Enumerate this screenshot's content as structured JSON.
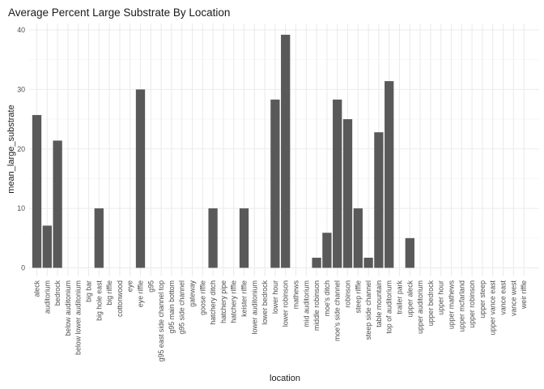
{
  "chart_data": {
    "type": "bar",
    "title": "Average Percent Large Substrate By Location",
    "xlabel": "location",
    "ylabel": "mean_large_substrate",
    "ylim": [
      0,
      40
    ],
    "yticks": [
      0,
      10,
      20,
      30,
      40
    ],
    "grid": true,
    "bar_color": "#595959",
    "categories": [
      "aleck",
      "auditorium",
      "bedrock",
      "below auditonium",
      "below lower auditonium",
      "big bar",
      "big hole east",
      "big riffle",
      "cottonwood",
      "eye",
      "eye riffle",
      "g95",
      "g95 east side channel top",
      "g95 main bottom",
      "g95 side channel",
      "gateway",
      "goose riffle",
      "hatchery ditch",
      "hatchery pipe",
      "hatchery riffle",
      "keister riffle",
      "lower auditonium",
      "lower bedrock",
      "lower hour",
      "lower robinson",
      "mathews",
      "mid auditorium",
      "middle robinson",
      "moe's ditch",
      "moe's side channel",
      "robinson",
      "steep riffle",
      "steep side channel",
      "table mountain",
      "top of auditorium",
      "trailer park",
      "upper aleck",
      "upper auditorium",
      "upper bedrock",
      "upper hour",
      "upper mathews",
      "upper mcfarland",
      "upper robinson",
      "upper steep",
      "upper vance east",
      "vance east",
      "vance west",
      "weir riffle"
    ],
    "values": [
      25.7,
      7.1,
      21.4,
      0,
      0,
      0,
      10,
      0,
      0,
      0,
      30,
      0,
      0,
      0,
      0,
      0,
      0,
      10,
      0,
      0,
      10,
      0,
      0,
      28.3,
      39.2,
      0,
      0,
      1.7,
      5.9,
      28.3,
      25,
      10,
      1.7,
      22.8,
      31.4,
      0,
      5,
      0,
      0,
      0,
      0,
      0,
      0,
      0,
      0,
      0,
      0,
      0
    ]
  }
}
